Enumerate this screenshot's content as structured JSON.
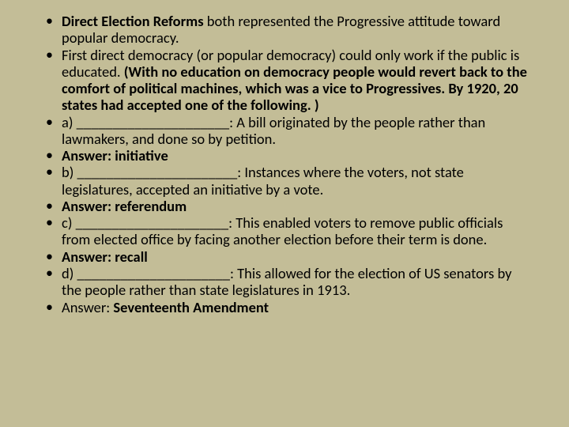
{
  "background_color": "#c3bd97",
  "text_color": "#000000",
  "font_family": "Calibri",
  "base_fontsize": 18.5,
  "line_height": 1.15,
  "bullets": [
    {
      "runs": [
        {
          "text": "Direct Election Reforms ",
          "bold": true
        },
        {
          "text": "both represented the Progressive attitude toward popular democracy.",
          "bold": false
        }
      ]
    },
    {
      "runs": [
        {
          "text": "First direct democracy (or popular democracy) could only work if the public is educated. ",
          "bold": false
        },
        {
          "text": "(With no education on democracy people would revert back to the comfort of political machines, which was a vice to Progressives. By 1920, 20 states had accepted one of the following. )",
          "bold": true
        }
      ]
    },
    {
      "runs": [
        {
          "text": "a) _____________________: ",
          "bold": false
        },
        {
          "text": "A bill originated by the people rather than lawmakers, and done so by petition.",
          "bold": false
        }
      ]
    },
    {
      "runs": [
        {
          "text": "Answer: initiative",
          "bold": true
        }
      ]
    },
    {
      "runs": [
        {
          "text": "b) ______________________: ",
          "bold": false
        },
        {
          "text": "Instances where the voters, not state legislatures, accepted an initiative by a vote.",
          "bold": false
        }
      ]
    },
    {
      "runs": [
        {
          "text": "Answer: referendum",
          "bold": true
        }
      ]
    },
    {
      "runs": [
        {
          "text": "c) _____________________: ",
          "bold": false
        },
        {
          "text": "This enabled voters to remove public officials from elected office by facing another election before their term is done.",
          "bold": false
        }
      ]
    },
    {
      "runs": [
        {
          "text": "Answer: recall",
          "bold": true
        }
      ]
    },
    {
      "runs": [
        {
          "text": "d) _____________________: ",
          "bold": false
        },
        {
          "text": "This allowed for the election of US senators by the people rather than state legislatures in 1913.",
          "bold": false
        }
      ]
    },
    {
      "runs": [
        {
          "text": "Answer: ",
          "bold": false
        },
        {
          "text": "Seventeenth Amendment",
          "bold": true
        }
      ]
    }
  ]
}
